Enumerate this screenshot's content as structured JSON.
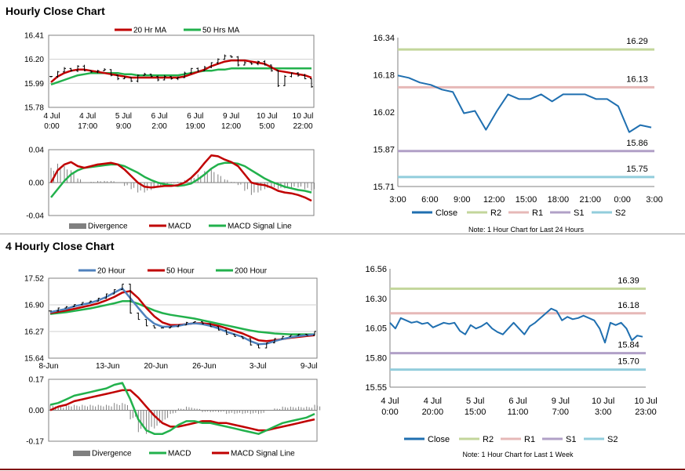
{
  "sections": {
    "hourly_title": "Hourly Close Chart",
    "four_hourly_title": "4 Hourly Close Chart"
  },
  "chart_data": [
    {
      "id": "hourly_price",
      "type": "line",
      "title": "Hourly Close Chart",
      "legend": [
        "20 Hr MA",
        "50 Hrs MA"
      ],
      "colors": {
        "ma20": "#c00000",
        "ma50": "#22b14c",
        "price": "#000000"
      },
      "y_ticks": [
        "16.41",
        "16.20",
        "15.99",
        "15.78"
      ],
      "ylim": [
        15.78,
        16.41
      ],
      "x_ticks": [
        [
          "4 Jul",
          "0:00"
        ],
        [
          "4 Jul",
          "17:00"
        ],
        [
          "5 Jul",
          "9:00"
        ],
        [
          "6 Jul",
          "2:00"
        ],
        [
          "6 Jul",
          "19:00"
        ],
        [
          "9 Jul",
          "12:00"
        ],
        [
          "10 Jul",
          "5:00"
        ],
        [
          "10 Jul",
          "22:00"
        ]
      ],
      "series": [
        {
          "name": "Close",
          "values": [
            16.05,
            16.09,
            16.12,
            16.1,
            16.14,
            16.1,
            16.09,
            16.1,
            16.11,
            16.06,
            16.03,
            16.04,
            16.01,
            16.06,
            16.07,
            16.05,
            16.02,
            16.05,
            16.03,
            16.04,
            16.08,
            16.12,
            16.1,
            16.13,
            16.17,
            16.2,
            16.23,
            16.22,
            16.15,
            16.17,
            16.16,
            16.18,
            16.15,
            16.1,
            15.97,
            16.05,
            16.08,
            16.06,
            16.03,
            15.96
          ]
        },
        {
          "name": "20 Hr MA",
          "values": [
            16.0,
            16.05,
            16.08,
            16.1,
            16.11,
            16.11,
            16.1,
            16.09,
            16.08,
            16.07,
            16.06,
            16.05,
            16.04,
            16.04,
            16.04,
            16.04,
            16.04,
            16.04,
            16.04,
            16.04,
            16.05,
            16.07,
            16.09,
            16.11,
            16.14,
            16.16,
            16.18,
            16.19,
            16.19,
            16.19,
            16.18,
            16.17,
            16.16,
            16.13,
            16.1,
            16.09,
            16.08,
            16.07,
            16.06,
            16.04
          ]
        },
        {
          "name": "50 Hrs MA",
          "values": [
            15.98,
            16.0,
            16.02,
            16.04,
            16.06,
            16.07,
            16.08,
            16.08,
            16.08,
            16.08,
            16.08,
            16.07,
            16.07,
            16.06,
            16.06,
            16.06,
            16.06,
            16.06,
            16.06,
            16.06,
            16.07,
            16.08,
            16.09,
            16.1,
            16.1,
            16.11,
            16.11,
            16.12,
            16.12,
            16.12,
            16.12,
            16.12,
            16.12,
            16.12,
            16.12,
            16.12,
            16.12,
            16.12,
            16.12,
            16.12
          ]
        }
      ]
    },
    {
      "id": "hourly_macd",
      "type": "line",
      "legend": [
        "Divergence",
        "MACD",
        "MACD Signal Line"
      ],
      "colors": {
        "macd": "#c00000",
        "signal": "#22b14c",
        "divergence": "#808080"
      },
      "y_ticks": [
        "0.04",
        "0.00",
        "-0.04"
      ],
      "ylim": [
        -0.04,
        0.04
      ],
      "series": [
        {
          "name": "MACD",
          "values": [
            0.0,
            0.015,
            0.022,
            0.025,
            0.02,
            0.018,
            0.02,
            0.022,
            0.023,
            0.024,
            0.022,
            0.016,
            0.008,
            0.0,
            -0.005,
            -0.006,
            -0.005,
            -0.004,
            -0.004,
            -0.003,
            0.0,
            0.006,
            0.014,
            0.024,
            0.033,
            0.032,
            0.028,
            0.025,
            0.02,
            0.01,
            0.0,
            -0.002,
            -0.003,
            -0.006,
            -0.01,
            -0.012,
            -0.013,
            -0.015,
            -0.018,
            -0.022
          ]
        },
        {
          "name": "MACD Signal Line",
          "values": [
            -0.018,
            -0.008,
            0.002,
            0.01,
            0.015,
            0.018,
            0.019,
            0.02,
            0.021,
            0.022,
            0.022,
            0.02,
            0.016,
            0.012,
            0.007,
            0.003,
            0.0,
            -0.002,
            -0.003,
            -0.004,
            -0.003,
            -0.001,
            0.004,
            0.01,
            0.017,
            0.022,
            0.024,
            0.024,
            0.023,
            0.02,
            0.015,
            0.01,
            0.005,
            0.001,
            -0.002,
            -0.005,
            -0.007,
            -0.009,
            -0.01,
            -0.012
          ]
        }
      ]
    },
    {
      "id": "hourly_24h",
      "type": "line",
      "note": "Note: 1 Hour Chart for Last 24 Hours",
      "legend": [
        "Close",
        "R2",
        "R1",
        "S1",
        "S2"
      ],
      "colors": {
        "close": "#1f6fb0",
        "r2": "#c3d69b",
        "r1": "#e6b8b7",
        "s1": "#b1a0c7",
        "s2": "#92cddc"
      },
      "y_ticks": [
        "16.34",
        "16.18",
        "16.02",
        "15.87",
        "15.71"
      ],
      "ylim": [
        15.71,
        16.34
      ],
      "x_ticks": [
        "3:00",
        "6:00",
        "9:00",
        "12:00",
        "15:00",
        "18:00",
        "21:00",
        "0:00",
        "3:00"
      ],
      "levels": {
        "R2": 16.29,
        "R1": 16.13,
        "S1": 15.86,
        "S2": 15.75
      },
      "level_labels": {
        "R2": "16.29",
        "R1": "16.13",
        "S1": "15.86",
        "S2": "15.75"
      },
      "values": [
        16.18,
        16.17,
        16.15,
        16.14,
        16.12,
        16.11,
        16.02,
        16.03,
        15.95,
        16.03,
        16.1,
        16.08,
        16.08,
        16.1,
        16.07,
        16.1,
        16.1,
        16.1,
        16.08,
        16.08,
        16.05,
        15.94,
        15.97,
        15.96
      ]
    },
    {
      "id": "four_hourly_price",
      "type": "line",
      "title": "4 Hourly Close Chart",
      "legend": [
        "20 Hour",
        "50 Hour",
        "200 Hour"
      ],
      "colors": {
        "ma20": "#4f81bd",
        "ma50": "#c00000",
        "ma200": "#22b14c",
        "price": "#000000"
      },
      "y_ticks": [
        "17.52",
        "16.90",
        "16.27",
        "15.64"
      ],
      "ylim": [
        15.64,
        17.52
      ],
      "x_ticks": [
        "8-Jun",
        "13-Jun",
        "20-Jun",
        "26-Jun",
        "3-Jul",
        "9-Jul"
      ],
      "series": [
        {
          "name": "Close",
          "values": [
            16.75,
            16.82,
            16.85,
            16.9,
            16.95,
            16.98,
            17.05,
            17.15,
            17.25,
            17.38,
            16.7,
            16.55,
            16.4,
            16.35,
            16.35,
            16.38,
            16.42,
            16.48,
            16.5,
            16.45,
            16.38,
            16.3,
            16.2,
            16.15,
            16.1,
            15.95,
            15.88,
            16.0,
            16.1,
            16.15,
            16.18,
            16.2,
            16.18,
            16.27
          ]
        },
        {
          "name": "20 Hour",
          "values": [
            16.72,
            16.76,
            16.8,
            16.86,
            16.9,
            16.94,
            17.0,
            17.08,
            17.18,
            17.28,
            17.05,
            16.82,
            16.6,
            16.45,
            16.38,
            16.38,
            16.4,
            16.44,
            16.46,
            16.44,
            16.4,
            16.34,
            16.26,
            16.2,
            16.14,
            16.04,
            15.97,
            15.98,
            16.04,
            16.09,
            16.13,
            16.16,
            16.18,
            16.2
          ]
        },
        {
          "name": "50 Hour",
          "values": [
            16.7,
            16.73,
            16.76,
            16.8,
            16.84,
            16.88,
            16.93,
            17.0,
            17.08,
            17.18,
            17.22,
            17.05,
            16.82,
            16.62,
            16.48,
            16.42,
            16.42,
            16.44,
            16.46,
            16.46,
            16.44,
            16.4,
            16.34,
            16.28,
            16.22,
            16.14,
            16.06,
            16.04,
            16.06,
            16.09,
            16.12,
            16.14,
            16.16,
            16.18
          ]
        },
        {
          "name": "200 Hour",
          "values": [
            16.68,
            16.7,
            16.72,
            16.75,
            16.78,
            16.81,
            16.85,
            16.89,
            16.93,
            16.98,
            16.98,
            16.92,
            16.84,
            16.76,
            16.7,
            16.66,
            16.63,
            16.6,
            16.57,
            16.53,
            16.49,
            16.45,
            16.41,
            16.37,
            16.33,
            16.29,
            16.26,
            16.24,
            16.22,
            16.21,
            16.2,
            16.2,
            16.2,
            16.2
          ]
        }
      ]
    },
    {
      "id": "four_hourly_macd",
      "type": "line",
      "legend": [
        "Divergence",
        "MACD",
        "MACD Signal Line"
      ],
      "colors": {
        "macd": "#22b14c",
        "signal": "#c00000",
        "divergence": "#808080"
      },
      "y_ticks": [
        "0.17",
        "0.00",
        "-0.17"
      ],
      "ylim": [
        -0.17,
        0.17
      ],
      "series": [
        {
          "name": "MACD",
          "values": [
            0.03,
            0.04,
            0.06,
            0.08,
            0.09,
            0.1,
            0.11,
            0.12,
            0.14,
            0.15,
            0.06,
            -0.05,
            -0.11,
            -0.13,
            -0.13,
            -0.11,
            -0.08,
            -0.06,
            -0.06,
            -0.07,
            -0.07,
            -0.08,
            -0.09,
            -0.1,
            -0.11,
            -0.12,
            -0.13,
            -0.11,
            -0.09,
            -0.07,
            -0.06,
            -0.05,
            -0.04,
            -0.02
          ]
        },
        {
          "name": "MACD Signal Line",
          "values": [
            0.0,
            0.02,
            0.03,
            0.05,
            0.06,
            0.07,
            0.08,
            0.09,
            0.1,
            0.11,
            0.11,
            0.07,
            0.02,
            -0.03,
            -0.07,
            -0.09,
            -0.09,
            -0.08,
            -0.07,
            -0.06,
            -0.06,
            -0.07,
            -0.07,
            -0.08,
            -0.09,
            -0.1,
            -0.11,
            -0.11,
            -0.1,
            -0.09,
            -0.08,
            -0.07,
            -0.06,
            -0.05
          ]
        }
      ]
    },
    {
      "id": "four_hourly_week",
      "type": "line",
      "note": "Note: 1 Hour Chart for Last 1 Week",
      "legend": [
        "Close",
        "R2",
        "R1",
        "S1",
        "S2"
      ],
      "colors": {
        "close": "#1f6fb0",
        "r2": "#c3d69b",
        "r1": "#e6b8b7",
        "s1": "#b1a0c7",
        "s2": "#92cddc"
      },
      "y_ticks": [
        "16.56",
        "16.30",
        "16.05",
        "15.80",
        "15.55"
      ],
      "ylim": [
        15.55,
        16.56
      ],
      "x_ticks": [
        [
          "4 Jul",
          "0:00"
        ],
        [
          "4 Jul",
          "20:00"
        ],
        [
          "5 Jul",
          "15:00"
        ],
        [
          "6 Jul",
          "11:00"
        ],
        [
          "9 Jul",
          "7:00"
        ],
        [
          "10 Jul",
          "3:00"
        ],
        [
          "10 Jul",
          "23:00"
        ]
      ],
      "levels": {
        "R2": 16.39,
        "R1": 16.18,
        "S1": 15.84,
        "S2": 15.7
      },
      "level_labels": {
        "R2": "16.39",
        "R1": "16.18",
        "S1": "15.84",
        "S2": "15.70"
      },
      "values": [
        16.1,
        16.05,
        16.14,
        16.12,
        16.1,
        16.11,
        16.09,
        16.1,
        16.06,
        16.08,
        16.1,
        16.09,
        16.1,
        16.03,
        16.0,
        16.08,
        16.05,
        16.07,
        16.1,
        16.05,
        16.02,
        16.0,
        16.05,
        16.1,
        16.05,
        16.0,
        16.07,
        16.1,
        16.14,
        16.18,
        16.22,
        16.2,
        16.12,
        16.15,
        16.13,
        16.14,
        16.16,
        16.14,
        16.12,
        16.05,
        15.93,
        16.1,
        16.08,
        16.1,
        16.05,
        15.95,
        15.99,
        15.98
      ]
    }
  ]
}
